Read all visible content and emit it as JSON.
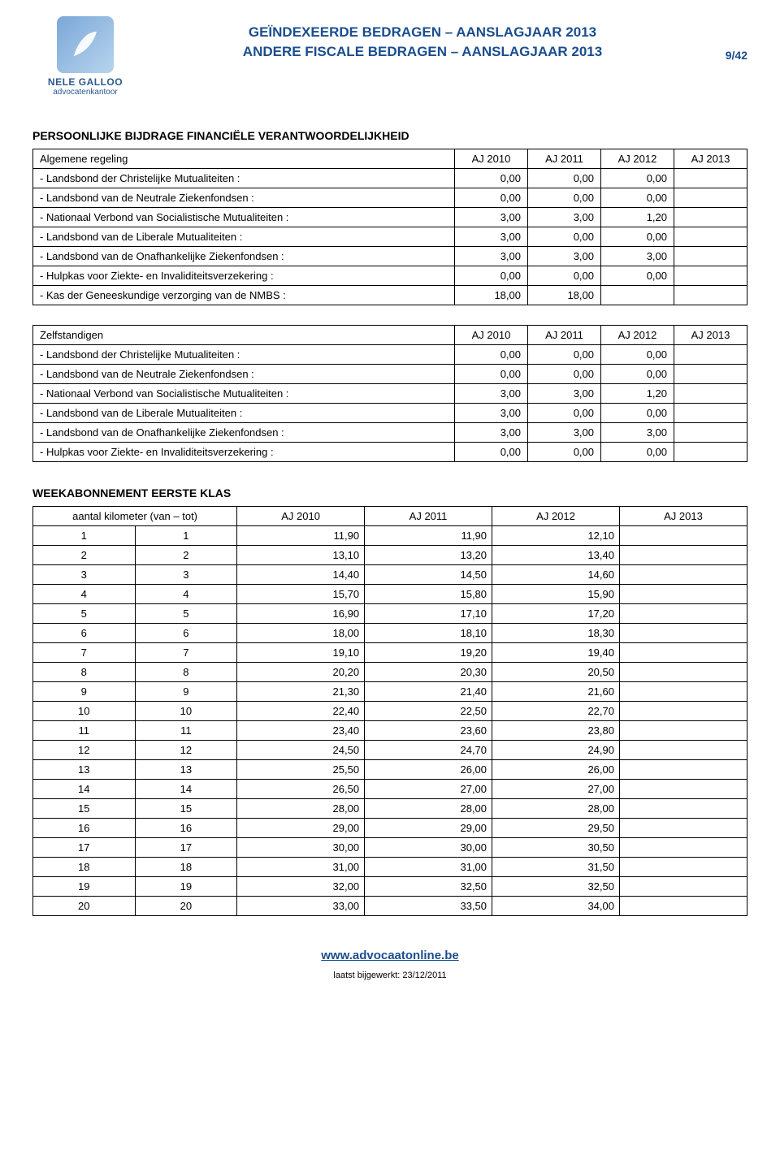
{
  "logo": {
    "name": "NELE GALLOO",
    "sub": "advocatenkantoor"
  },
  "header": {
    "line1": "GEÏNDEXEERDE BEDRAGEN – AANSLAGJAAR 2013",
    "line2": "ANDERE FISCALE BEDRAGEN – AANSLAGJAAR 2013",
    "page": "9/42"
  },
  "section1": {
    "title": "PERSOONLIJKE BIJDRAGE FINANCIËLE VERANTWOORDELIJKHEID",
    "tableA": {
      "header": [
        "Algemene regeling",
        "AJ 2010",
        "AJ 2011",
        "AJ 2012",
        "AJ 2013"
      ],
      "rows": [
        {
          "label": "- Landsbond der Christelijke Mutualiteiten :",
          "c1": "0,00",
          "c2": "0,00",
          "c3": "0,00"
        },
        {
          "label": "- Landsbond van de Neutrale Ziekenfondsen :",
          "c1": "0,00",
          "c2": "0,00",
          "c3": "0,00"
        },
        {
          "label": "- Nationaal Verbond van Socialistische Mutualiteiten :",
          "c1": "3,00",
          "c2": "3,00",
          "c3": "1,20"
        },
        {
          "label": "- Landsbond van de Liberale Mutualiteiten :",
          "c1": "3,00",
          "c2": "0,00",
          "c3": "0,00"
        },
        {
          "label": "- Landsbond van de Onafhankelijke Ziekenfondsen :",
          "c1": "3,00",
          "c2": "3,00",
          "c3": "3,00"
        },
        {
          "label": "- Hulpkas voor Ziekte- en Invaliditeitsverzekering :",
          "c1": "0,00",
          "c2": "0,00",
          "c3": "0,00"
        },
        {
          "label": "- Kas der Geneeskundige verzorging van de NMBS :",
          "c1": "18,00",
          "c2": "18,00",
          "c3": ""
        }
      ]
    },
    "tableB": {
      "header": [
        "Zelfstandigen",
        "AJ 2010",
        "AJ 2011",
        "AJ 2012",
        "AJ 2013"
      ],
      "rows": [
        {
          "label": "- Landsbond der Christelijke Mutualiteiten :",
          "c1": "0,00",
          "c2": "0,00",
          "c3": "0,00"
        },
        {
          "label": "- Landsbond van de Neutrale Ziekenfondsen :",
          "c1": "0,00",
          "c2": "0,00",
          "c3": "0,00"
        },
        {
          "label": "- Nationaal Verbond van Socialistische Mutualiteiten :",
          "c1": "3,00",
          "c2": "3,00",
          "c3": "1,20"
        },
        {
          "label": "- Landsbond van de Liberale Mutualiteiten :",
          "c1": "3,00",
          "c2": "0,00",
          "c3": "0,00"
        },
        {
          "label": "- Landsbond van de Onafhankelijke Ziekenfondsen :",
          "c1": "3,00",
          "c2": "3,00",
          "c3": "3,00"
        },
        {
          "label": "- Hulpkas voor Ziekte- en Invaliditeitsverzekering :",
          "c1": "0,00",
          "c2": "0,00",
          "c3": "0,00"
        }
      ]
    }
  },
  "section2": {
    "title": "WEEKABONNEMENT EERSTE KLAS",
    "kmHeader": "aantal kilometer (van – tot)",
    "cols": [
      "AJ 2010",
      "AJ 2011",
      "AJ 2012",
      "AJ 2013"
    ],
    "rows": [
      {
        "from": "1",
        "to": "1",
        "c1": "11,90",
        "c2": "11,90",
        "c3": "12,10"
      },
      {
        "from": "2",
        "to": "2",
        "c1": "13,10",
        "c2": "13,20",
        "c3": "13,40"
      },
      {
        "from": "3",
        "to": "3",
        "c1": "14,40",
        "c2": "14,50",
        "c3": "14,60"
      },
      {
        "from": "4",
        "to": "4",
        "c1": "15,70",
        "c2": "15,80",
        "c3": "15,90"
      },
      {
        "from": "5",
        "to": "5",
        "c1": "16,90",
        "c2": "17,10",
        "c3": "17,20"
      },
      {
        "from": "6",
        "to": "6",
        "c1": "18,00",
        "c2": "18,10",
        "c3": "18,30"
      },
      {
        "from": "7",
        "to": "7",
        "c1": "19,10",
        "c2": "19,20",
        "c3": "19,40"
      },
      {
        "from": "8",
        "to": "8",
        "c1": "20,20",
        "c2": "20,30",
        "c3": "20,50"
      },
      {
        "from": "9",
        "to": "9",
        "c1": "21,30",
        "c2": "21,40",
        "c3": "21,60"
      },
      {
        "from": "10",
        "to": "10",
        "c1": "22,40",
        "c2": "22,50",
        "c3": "22,70"
      },
      {
        "from": "11",
        "to": "11",
        "c1": "23,40",
        "c2": "23,60",
        "c3": "23,80"
      },
      {
        "from": "12",
        "to": "12",
        "c1": "24,50",
        "c2": "24,70",
        "c3": "24,90"
      },
      {
        "from": "13",
        "to": "13",
        "c1": "25,50",
        "c2": "26,00",
        "c3": "26,00"
      },
      {
        "from": "14",
        "to": "14",
        "c1": "26,50",
        "c2": "27,00",
        "c3": "27,00"
      },
      {
        "from": "15",
        "to": "15",
        "c1": "28,00",
        "c2": "28,00",
        "c3": "28,00"
      },
      {
        "from": "16",
        "to": "16",
        "c1": "29,00",
        "c2": "29,00",
        "c3": "29,50"
      },
      {
        "from": "17",
        "to": "17",
        "c1": "30,00",
        "c2": "30,00",
        "c3": "30,50"
      },
      {
        "from": "18",
        "to": "18",
        "c1": "31,00",
        "c2": "31,00",
        "c3": "31,50"
      },
      {
        "from": "19",
        "to": "19",
        "c1": "32,00",
        "c2": "32,50",
        "c3": "32,50"
      },
      {
        "from": "20",
        "to": "20",
        "c1": "33,00",
        "c2": "33,50",
        "c3": "34,00"
      }
    ]
  },
  "footer": {
    "link": "www.advocaatonline.be",
    "date": "laatst bijgewerkt: 23/12/2011"
  },
  "colors": {
    "title": "#1a4d8f",
    "border": "#000000",
    "logo_bg1": "#7aa8d8",
    "logo_bg2": "#b8d4ee"
  }
}
